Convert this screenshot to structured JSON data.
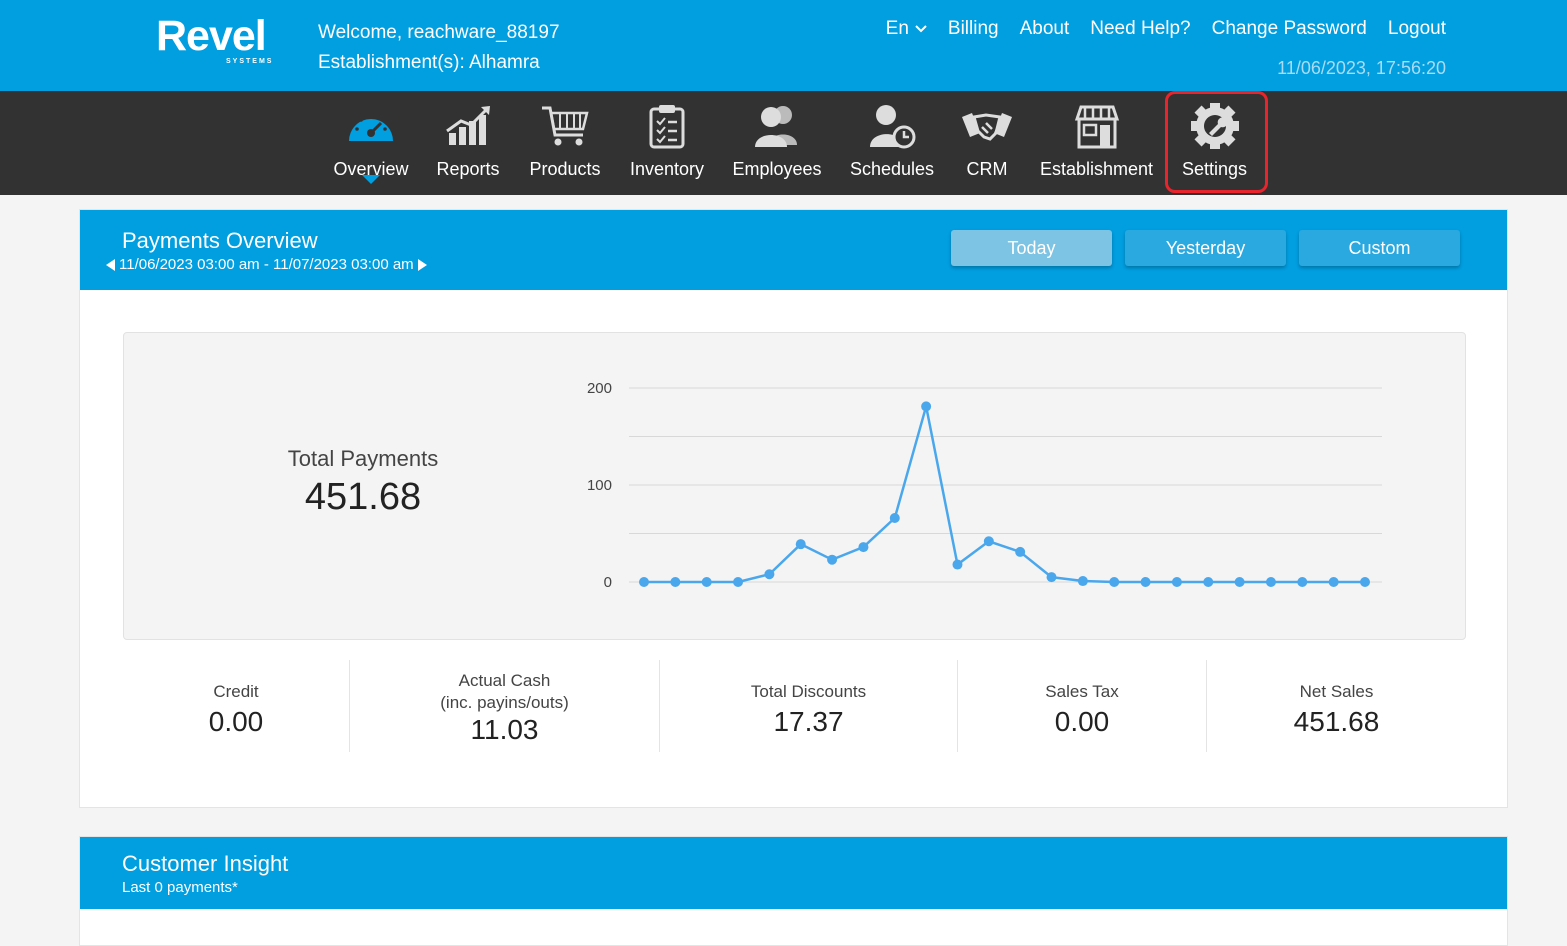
{
  "header": {
    "logo": "Revel",
    "logo_sub": "SYSTEMS",
    "welcome": "Welcome, reachware_88197",
    "establishment": "Establishment(s): Alhamra",
    "language": "En",
    "links": [
      "Billing",
      "About",
      "Need Help?",
      "Change Password",
      "Logout"
    ],
    "datetime": "11/06/2023, 17:56:20"
  },
  "nav": {
    "items": [
      {
        "label": "Overview",
        "icon": "speedometer-icon"
      },
      {
        "label": "Reports",
        "icon": "bar-chart-icon"
      },
      {
        "label": "Products",
        "icon": "cart-icon"
      },
      {
        "label": "Inventory",
        "icon": "clipboard-icon"
      },
      {
        "label": "Employees",
        "icon": "people-icon"
      },
      {
        "label": "Schedules",
        "icon": "person-clock-icon"
      },
      {
        "label": "CRM",
        "icon": "handshake-icon"
      },
      {
        "label": "Establishment",
        "icon": "storefront-icon"
      },
      {
        "label": "Settings",
        "icon": "gear-wrench-icon"
      }
    ],
    "active": "Overview",
    "highlighted": "Settings"
  },
  "payments": {
    "title": "Payments Overview",
    "range": "11/06/2023 03:00 am - 11/07/2023 03:00 am",
    "buttons": {
      "today": "Today",
      "yesterday": "Yesterday",
      "custom": "Custom"
    },
    "total_label": "Total Payments",
    "total_value": "451.68",
    "stats": [
      {
        "label": "Credit",
        "label2": "",
        "value": "0.00"
      },
      {
        "label": "Actual Cash",
        "label2": "(inc. payins/outs)",
        "value": "11.03"
      },
      {
        "label": "Total Discounts",
        "label2": "",
        "value": "17.37"
      },
      {
        "label": "Sales Tax",
        "label2": "",
        "value": "0.00"
      },
      {
        "label": "Net Sales",
        "label2": "",
        "value": "451.68"
      }
    ]
  },
  "chart_data": {
    "type": "line",
    "title": "",
    "xlabel": "",
    "ylabel": "",
    "ylim": [
      0,
      200
    ],
    "yticks": [
      0,
      100,
      200
    ],
    "grid": true,
    "line_color": "#4aa7ec",
    "series": [
      {
        "values": [
          0,
          0,
          0,
          0,
          8,
          39,
          23,
          36,
          66,
          181,
          18,
          42,
          31,
          5,
          1,
          0,
          0,
          0,
          0,
          0,
          0,
          0,
          0,
          0
        ]
      }
    ]
  },
  "insight": {
    "title": "Customer Insight",
    "subtitle": "Last 0 payments*"
  },
  "colors": {
    "brand_blue": "#019ee0",
    "nav_bg": "#333232",
    "highlight_red": "#e8242c"
  }
}
